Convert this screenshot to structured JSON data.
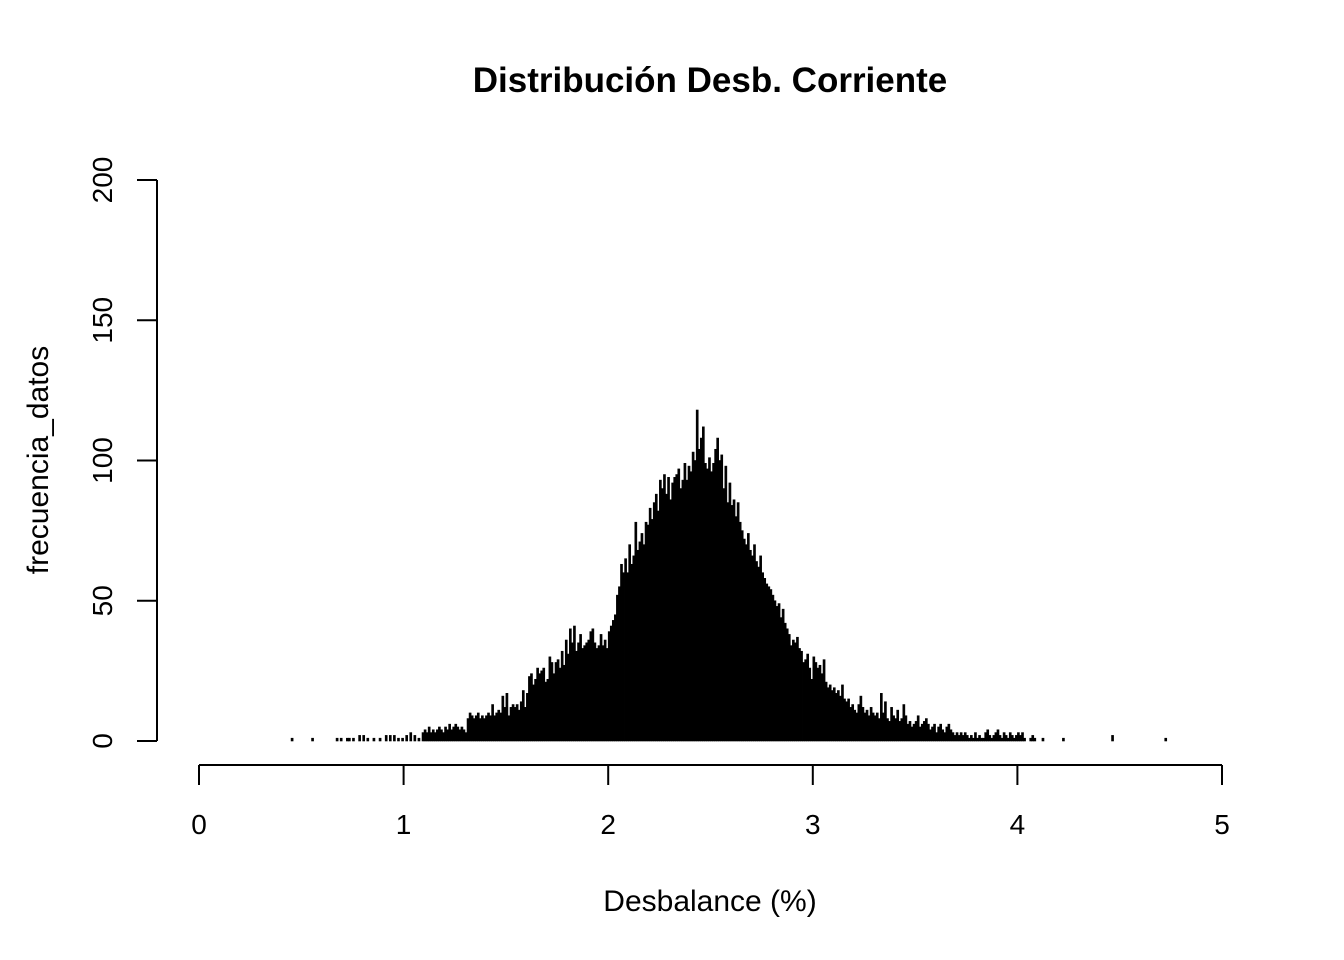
{
  "chart_data": {
    "type": "bar",
    "title": "Distribución Desb. Corriente",
    "xlabel": "Desbalance (%)",
    "ylabel": "frecuencia_datos",
    "xlim": [
      0,
      5
    ],
    "ylim": [
      0,
      200
    ],
    "x_ticks": [
      "0",
      "1",
      "2",
      "3",
      "4",
      "5"
    ],
    "y_ticks": [
      "0",
      "50",
      "100",
      "150",
      "200"
    ],
    "bar_color": "#000000",
    "grid": false,
    "legend": "none",
    "bin_width": 0.01,
    "bars": [
      [
        0.45,
        1
      ],
      [
        0.55,
        1
      ],
      [
        0.67,
        1
      ],
      [
        0.69,
        1
      ],
      [
        0.72,
        1
      ],
      [
        0.73,
        1
      ],
      [
        0.75,
        1
      ],
      [
        0.78,
        2
      ],
      [
        0.8,
        2
      ],
      [
        0.82,
        1
      ],
      [
        0.85,
        1
      ],
      [
        0.88,
        1
      ],
      [
        0.91,
        2
      ],
      [
        0.93,
        2
      ],
      [
        0.95,
        2
      ],
      [
        0.97,
        1
      ],
      [
        0.99,
        1
      ],
      [
        1.01,
        2
      ],
      [
        1.03,
        3
      ],
      [
        1.05,
        2
      ],
      [
        1.07,
        1
      ],
      [
        1.09,
        3
      ],
      [
        1.1,
        4
      ],
      [
        1.11,
        3
      ],
      [
        1.12,
        5
      ],
      [
        1.13,
        3
      ],
      [
        1.14,
        4
      ],
      [
        1.15,
        3
      ],
      [
        1.16,
        4
      ],
      [
        1.17,
        5
      ],
      [
        1.18,
        4
      ],
      [
        1.19,
        3
      ],
      [
        1.2,
        5
      ],
      [
        1.21,
        4
      ],
      [
        1.22,
        6
      ],
      [
        1.23,
        4
      ],
      [
        1.24,
        5
      ],
      [
        1.25,
        6
      ],
      [
        1.26,
        5
      ],
      [
        1.27,
        4
      ],
      [
        1.28,
        5
      ],
      [
        1.29,
        4
      ],
      [
        1.3,
        3
      ],
      [
        1.31,
        8
      ],
      [
        1.32,
        10
      ],
      [
        1.33,
        9
      ],
      [
        1.34,
        8
      ],
      [
        1.35,
        9
      ],
      [
        1.36,
        10
      ],
      [
        1.37,
        8
      ],
      [
        1.38,
        9
      ],
      [
        1.39,
        8
      ],
      [
        1.4,
        9
      ],
      [
        1.41,
        10
      ],
      [
        1.42,
        9
      ],
      [
        1.43,
        13
      ],
      [
        1.44,
        9
      ],
      [
        1.45,
        10
      ],
      [
        1.46,
        11
      ],
      [
        1.47,
        10
      ],
      [
        1.48,
        16
      ],
      [
        1.49,
        12
      ],
      [
        1.5,
        17
      ],
      [
        1.51,
        9
      ],
      [
        1.52,
        12
      ],
      [
        1.53,
        13
      ],
      [
        1.54,
        12
      ],
      [
        1.55,
        13
      ],
      [
        1.56,
        11
      ],
      [
        1.57,
        14
      ],
      [
        1.58,
        18
      ],
      [
        1.59,
        12
      ],
      [
        1.6,
        17
      ],
      [
        1.61,
        23
      ],
      [
        1.62,
        24
      ],
      [
        1.63,
        20
      ],
      [
        1.64,
        22
      ],
      [
        1.65,
        26
      ],
      [
        1.66,
        24
      ],
      [
        1.67,
        25
      ],
      [
        1.68,
        26
      ],
      [
        1.69,
        21
      ],
      [
        1.7,
        22
      ],
      [
        1.71,
        30
      ],
      [
        1.72,
        28
      ],
      [
        1.73,
        24
      ],
      [
        1.74,
        28
      ],
      [
        1.75,
        29
      ],
      [
        1.76,
        26
      ],
      [
        1.77,
        32
      ],
      [
        1.78,
        27
      ],
      [
        1.79,
        36
      ],
      [
        1.8,
        31
      ],
      [
        1.81,
        40
      ],
      [
        1.82,
        35
      ],
      [
        1.83,
        41
      ],
      [
        1.84,
        32
      ],
      [
        1.85,
        35
      ],
      [
        1.86,
        38
      ],
      [
        1.87,
        33
      ],
      [
        1.88,
        34
      ],
      [
        1.89,
        35
      ],
      [
        1.9,
        36
      ],
      [
        1.91,
        39
      ],
      [
        1.92,
        40
      ],
      [
        1.93,
        35
      ],
      [
        1.94,
        33
      ],
      [
        1.95,
        34
      ],
      [
        1.96,
        38
      ],
      [
        1.97,
        34
      ],
      [
        1.98,
        36
      ],
      [
        1.99,
        33
      ],
      [
        2.0,
        39
      ],
      [
        2.01,
        41
      ],
      [
        2.02,
        43
      ],
      [
        2.03,
        45
      ],
      [
        2.04,
        52
      ],
      [
        2.05,
        55
      ],
      [
        2.06,
        63
      ],
      [
        2.07,
        60
      ],
      [
        2.08,
        65
      ],
      [
        2.09,
        60
      ],
      [
        2.1,
        70
      ],
      [
        2.11,
        63
      ],
      [
        2.12,
        66
      ],
      [
        2.13,
        78
      ],
      [
        2.14,
        68
      ],
      [
        2.15,
        71
      ],
      [
        2.16,
        74
      ],
      [
        2.17,
        70
      ],
      [
        2.18,
        78
      ],
      [
        2.19,
        77
      ],
      [
        2.2,
        83
      ],
      [
        2.21,
        79
      ],
      [
        2.22,
        85
      ],
      [
        2.23,
        88
      ],
      [
        2.24,
        82
      ],
      [
        2.25,
        93
      ],
      [
        2.26,
        90
      ],
      [
        2.27,
        95
      ],
      [
        2.28,
        88
      ],
      [
        2.29,
        94
      ],
      [
        2.3,
        86
      ],
      [
        2.31,
        92
      ],
      [
        2.32,
        94
      ],
      [
        2.33,
        95
      ],
      [
        2.34,
        97
      ],
      [
        2.35,
        90
      ],
      [
        2.36,
        93
      ],
      [
        2.37,
        99
      ],
      [
        2.38,
        93
      ],
      [
        2.39,
        98
      ],
      [
        2.4,
        96
      ],
      [
        2.41,
        103
      ],
      [
        2.42,
        100
      ],
      [
        2.43,
        118
      ],
      [
        2.44,
        104
      ],
      [
        2.45,
        108
      ],
      [
        2.46,
        112
      ],
      [
        2.47,
        99
      ],
      [
        2.48,
        97
      ],
      [
        2.49,
        101
      ],
      [
        2.5,
        96
      ],
      [
        2.51,
        99
      ],
      [
        2.52,
        104
      ],
      [
        2.53,
        108
      ],
      [
        2.54,
        100
      ],
      [
        2.55,
        102
      ],
      [
        2.56,
        90
      ],
      [
        2.57,
        98
      ],
      [
        2.58,
        85
      ],
      [
        2.59,
        92
      ],
      [
        2.6,
        84
      ],
      [
        2.61,
        86
      ],
      [
        2.62,
        80
      ],
      [
        2.63,
        85
      ],
      [
        2.64,
        78
      ],
      [
        2.65,
        75
      ],
      [
        2.66,
        72
      ],
      [
        2.67,
        70
      ],
      [
        2.68,
        74
      ],
      [
        2.69,
        68
      ],
      [
        2.7,
        66
      ],
      [
        2.71,
        70
      ],
      [
        2.72,
        64
      ],
      [
        2.73,
        62
      ],
      [
        2.74,
        66
      ],
      [
        2.75,
        60
      ],
      [
        2.76,
        58
      ],
      [
        2.77,
        56
      ],
      [
        2.78,
        55
      ],
      [
        2.79,
        54
      ],
      [
        2.8,
        52
      ],
      [
        2.81,
        50
      ],
      [
        2.82,
        48
      ],
      [
        2.83,
        49
      ],
      [
        2.84,
        44
      ],
      [
        2.85,
        47
      ],
      [
        2.86,
        42
      ],
      [
        2.87,
        40
      ],
      [
        2.88,
        38
      ],
      [
        2.89,
        34
      ],
      [
        2.9,
        36
      ],
      [
        2.91,
        35
      ],
      [
        2.92,
        37
      ],
      [
        2.93,
        33
      ],
      [
        2.94,
        32
      ],
      [
        2.95,
        28
      ],
      [
        2.96,
        29
      ],
      [
        2.97,
        31
      ],
      [
        2.98,
        26
      ],
      [
        2.99,
        22
      ],
      [
        3.0,
        30
      ],
      [
        3.01,
        28
      ],
      [
        3.02,
        26
      ],
      [
        3.03,
        27
      ],
      [
        3.04,
        24
      ],
      [
        3.05,
        29
      ],
      [
        3.06,
        21
      ],
      [
        3.07,
        19
      ],
      [
        3.08,
        20
      ],
      [
        3.09,
        18
      ],
      [
        3.1,
        19
      ],
      [
        3.11,
        17
      ],
      [
        3.12,
        18
      ],
      [
        3.13,
        16
      ],
      [
        3.14,
        20
      ],
      [
        3.15,
        15
      ],
      [
        3.16,
        14
      ],
      [
        3.17,
        15
      ],
      [
        3.18,
        12
      ],
      [
        3.19,
        13
      ],
      [
        3.2,
        11
      ],
      [
        3.21,
        10
      ],
      [
        3.22,
        13
      ],
      [
        3.23,
        16
      ],
      [
        3.24,
        12
      ],
      [
        3.25,
        10
      ],
      [
        3.26,
        11
      ],
      [
        3.27,
        9
      ],
      [
        3.28,
        12
      ],
      [
        3.29,
        10
      ],
      [
        3.3,
        9
      ],
      [
        3.31,
        10
      ],
      [
        3.32,
        8
      ],
      [
        3.33,
        17
      ],
      [
        3.34,
        10
      ],
      [
        3.35,
        14
      ],
      [
        3.36,
        8
      ],
      [
        3.37,
        7
      ],
      [
        3.38,
        12
      ],
      [
        3.39,
        9
      ],
      [
        3.4,
        8
      ],
      [
        3.41,
        11
      ],
      [
        3.42,
        7
      ],
      [
        3.43,
        8
      ],
      [
        3.44,
        13
      ],
      [
        3.45,
        9
      ],
      [
        3.46,
        6
      ],
      [
        3.47,
        7
      ],
      [
        3.48,
        5
      ],
      [
        3.49,
        6
      ],
      [
        3.5,
        7
      ],
      [
        3.51,
        9
      ],
      [
        3.52,
        5
      ],
      [
        3.53,
        6
      ],
      [
        3.54,
        7
      ],
      [
        3.55,
        8
      ],
      [
        3.56,
        6
      ],
      [
        3.57,
        4
      ],
      [
        3.58,
        5
      ],
      [
        3.59,
        6
      ],
      [
        3.6,
        3
      ],
      [
        3.61,
        5
      ],
      [
        3.62,
        6
      ],
      [
        3.63,
        4
      ],
      [
        3.64,
        3
      ],
      [
        3.65,
        5
      ],
      [
        3.66,
        6
      ],
      [
        3.67,
        4
      ],
      [
        3.68,
        3
      ],
      [
        3.69,
        2
      ],
      [
        3.7,
        3
      ],
      [
        3.71,
        2
      ],
      [
        3.72,
        3
      ],
      [
        3.73,
        2
      ],
      [
        3.74,
        3
      ],
      [
        3.75,
        2
      ],
      [
        3.76,
        1
      ],
      [
        3.77,
        2
      ],
      [
        3.78,
        1
      ],
      [
        3.79,
        3
      ],
      [
        3.8,
        1
      ],
      [
        3.81,
        2
      ],
      [
        3.82,
        1
      ],
      [
        3.83,
        1
      ],
      [
        3.84,
        3
      ],
      [
        3.85,
        4
      ],
      [
        3.86,
        2
      ],
      [
        3.87,
        1
      ],
      [
        3.88,
        2
      ],
      [
        3.89,
        3
      ],
      [
        3.9,
        4
      ],
      [
        3.91,
        2
      ],
      [
        3.92,
        1
      ],
      [
        3.93,
        3
      ],
      [
        3.94,
        2
      ],
      [
        3.95,
        1
      ],
      [
        3.96,
        3
      ],
      [
        3.97,
        2
      ],
      [
        3.98,
        1
      ],
      [
        3.99,
        2
      ],
      [
        4.0,
        3
      ],
      [
        4.01,
        2
      ],
      [
        4.02,
        3
      ],
      [
        4.03,
        1
      ],
      [
        4.06,
        1
      ],
      [
        4.07,
        2
      ],
      [
        4.08,
        1
      ],
      [
        4.12,
        1
      ],
      [
        4.22,
        1
      ],
      [
        4.46,
        2
      ],
      [
        4.72,
        1
      ]
    ]
  }
}
